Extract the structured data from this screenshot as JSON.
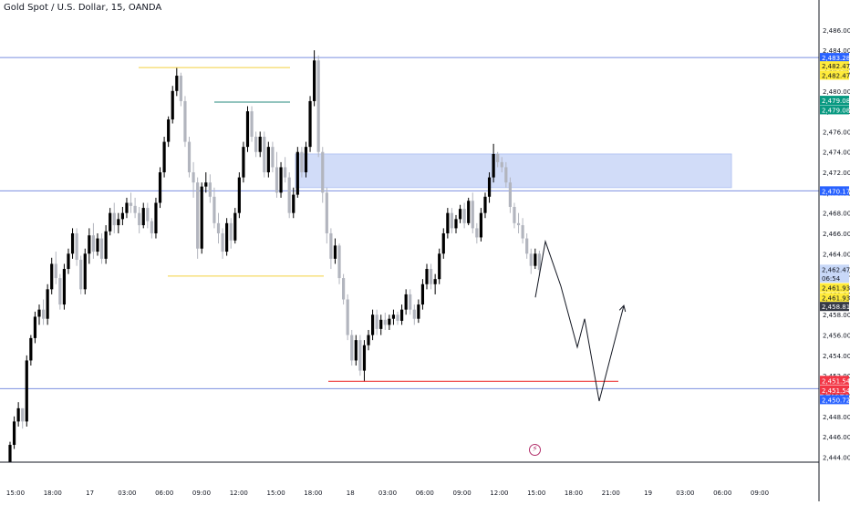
{
  "header": {
    "title": "Gold Spot / U.S. Dollar, 15, OANDA"
  },
  "icons": {
    "alert": "flash-icon"
  },
  "colors": {
    "up": "#000000",
    "down": "#b2b5be",
    "hline": "#7b8fe0",
    "zone": "#c9d6f7",
    "yellow": "#f4d03f",
    "teal": "#26897d",
    "red": "#ee3b3b",
    "badge_blue": "#2962ff",
    "badge_yellow": "#ffeb3b",
    "badge_green": "#089981",
    "badge_dark": "#363a45",
    "badge_red": "#f23645",
    "badge_light": "#c8d8f8"
  },
  "chart_data": {
    "type": "candlestick",
    "symbol": "Gold Spot / U.S. Dollar",
    "interval": "15",
    "source": "OANDA",
    "ylim": [
      2443.5,
      2487.6
    ],
    "y_ticks": [
      "2,486.000",
      "2,484.000",
      "2,482.000",
      "2,480.000",
      "2,478.000",
      "2,476.000",
      "2,474.000",
      "2,472.000",
      "2,470.000",
      "2,468.000",
      "2,466.000",
      "2,464.000",
      "2,462.000",
      "2,460.000",
      "2,458.000",
      "2,456.000",
      "2,454.000",
      "2,452.000",
      "2,450.000",
      "2,448.000",
      "2,446.000",
      "2,444.000"
    ],
    "x_ticks": [
      "15:00",
      "18:00",
      "17",
      "03:00",
      "06:00",
      "09:00",
      "12:00",
      "15:00",
      "18:00",
      "18",
      "03:00",
      "06:00",
      "09:00",
      "12:00",
      "15:00",
      "18:00",
      "21:00",
      "19",
      "03:00",
      "06:00",
      "09:00"
    ],
    "price_badges": [
      {
        "label": "2,483.289",
        "y": 2483.289,
        "style": "blue"
      },
      {
        "label": "2,482.478",
        "y": 2482.478,
        "style": "yellow"
      },
      {
        "label": "2,482.478",
        "y": 2481.55,
        "style": "yellow"
      },
      {
        "label": "2,479.080",
        "y": 2479.08,
        "style": "green"
      },
      {
        "label": "2,479.080",
        "y": 2478.15,
        "style": "green"
      },
      {
        "label": "2,470.178",
        "y": 2470.178,
        "style": "blue"
      },
      {
        "label": "2,462.475",
        "y": 2462.475,
        "style": "light"
      },
      {
        "label": "06:54",
        "y": 2461.6,
        "style": "light"
      },
      {
        "label": "2,461.937",
        "y": 2460.65,
        "style": "yellow"
      },
      {
        "label": "2,461.937",
        "y": 2459.7,
        "style": "yellow"
      },
      {
        "label": "2,458.810",
        "y": 2458.81,
        "style": "dark"
      },
      {
        "label": "2,451.542",
        "y": 2451.542,
        "style": "red"
      },
      {
        "label": "2,451.542",
        "y": 2450.6,
        "style": "red"
      },
      {
        "label": "2,450.723",
        "y": 2449.65,
        "style": "blue"
      }
    ],
    "horizontal_lines": [
      2483.289,
      2470.178,
      2450.723
    ],
    "zone": {
      "y_top": 2473.8,
      "y_bottom": 2470.5,
      "x_start": 324,
      "x_end": 802
    },
    "segments": [
      {
        "color": "yellow",
        "y": 2482.3,
        "x1": 152,
        "x2": 318
      },
      {
        "color": "teal",
        "y": 2478.9,
        "x1": 235,
        "x2": 318
      },
      {
        "color": "yellow",
        "y": 2461.8,
        "x1": 184,
        "x2": 355
      },
      {
        "color": "red",
        "y": 2451.45,
        "x1": 360,
        "x2": 678
      }
    ],
    "projection_path": [
      [
        587,
        2459.7
      ],
      [
        598,
        2465.2
      ],
      [
        615,
        2460.8
      ],
      [
        633,
        2454.8
      ],
      [
        641,
        2457.6
      ],
      [
        657,
        2449.5
      ],
      [
        684,
        2458.9
      ]
    ],
    "ohlc": [
      [
        2443.5,
        2445.5,
        2443.5,
        2445.2
      ],
      [
        2445.2,
        2448.0,
        2444.8,
        2447.5
      ],
      [
        2447.5,
        2449.4,
        2447.0,
        2448.8
      ],
      [
        2448.8,
        2448.8,
        2446.8,
        2447.5
      ],
      [
        2447.5,
        2454.0,
        2447.0,
        2453.5
      ],
      [
        2453.5,
        2456.0,
        2453.0,
        2455.7
      ],
      [
        2455.7,
        2458.3,
        2455.2,
        2457.8
      ],
      [
        2457.8,
        2459.0,
        2457.0,
        2458.5
      ],
      [
        2458.5,
        2459.5,
        2457.0,
        2457.6
      ],
      [
        2457.6,
        2461.0,
        2457.0,
        2460.5
      ],
      [
        2460.5,
        2463.6,
        2460.0,
        2463.0
      ],
      [
        2463.0,
        2464.2,
        2461.0,
        2461.6
      ],
      [
        2461.6,
        2462.0,
        2458.5,
        2459.0
      ],
      [
        2459.0,
        2463.0,
        2458.5,
        2462.5
      ],
      [
        2462.5,
        2464.5,
        2462.0,
        2464.0
      ],
      [
        2464.0,
        2466.5,
        2463.5,
        2466.0
      ],
      [
        2466.0,
        2466.5,
        2462.8,
        2463.4
      ],
      [
        2463.4,
        2463.8,
        2460.0,
        2460.5
      ],
      [
        2460.5,
        2464.5,
        2460.0,
        2464.0
      ],
      [
        2464.0,
        2466.5,
        2463.0,
        2465.8
      ],
      [
        2465.8,
        2467.0,
        2463.5,
        2464.2
      ],
      [
        2464.2,
        2466.0,
        2463.8,
        2465.5
      ],
      [
        2465.5,
        2466.0,
        2463.0,
        2463.5
      ],
      [
        2463.5,
        2466.8,
        2463.0,
        2466.2
      ],
      [
        2466.2,
        2468.5,
        2465.8,
        2468.0
      ],
      [
        2468.0,
        2469.0,
        2466.0,
        2466.8
      ],
      [
        2466.8,
        2468.0,
        2466.0,
        2467.4
      ],
      [
        2467.4,
        2468.6,
        2466.8,
        2468.0
      ],
      [
        2468.0,
        2469.5,
        2467.5,
        2469.0
      ],
      [
        2469.0,
        2470.0,
        2468.0,
        2468.7
      ],
      [
        2468.7,
        2469.5,
        2467.5,
        2468.0
      ],
      [
        2468.0,
        2468.6,
        2466.0,
        2466.8
      ],
      [
        2466.8,
        2469.0,
        2466.5,
        2468.5
      ],
      [
        2468.5,
        2469.0,
        2466.5,
        2467.2
      ],
      [
        2467.2,
        2467.5,
        2465.5,
        2466.0
      ],
      [
        2466.0,
        2469.5,
        2465.5,
        2469.0
      ],
      [
        2469.0,
        2472.5,
        2468.5,
        2472.0
      ],
      [
        2472.0,
        2475.5,
        2471.5,
        2475.0
      ],
      [
        2475.0,
        2477.5,
        2474.5,
        2477.2
      ],
      [
        2477.2,
        2480.5,
        2476.8,
        2480.0
      ],
      [
        2480.0,
        2482.3,
        2479.5,
        2481.5
      ],
      [
        2481.5,
        2481.8,
        2478.5,
        2479.0
      ],
      [
        2479.0,
        2479.5,
        2474.5,
        2475.0
      ],
      [
        2475.0,
        2475.5,
        2471.5,
        2472.0
      ],
      [
        2472.0,
        2473.0,
        2469.5,
        2471.0
      ],
      [
        2471.0,
        2471.5,
        2463.5,
        2464.5
      ],
      [
        2464.5,
        2471.0,
        2464.0,
        2470.6
      ],
      [
        2470.6,
        2472.0,
        2470.0,
        2471.0
      ],
      [
        2471.0,
        2471.8,
        2469.0,
        2469.6
      ],
      [
        2469.6,
        2470.5,
        2466.5,
        2467.0
      ],
      [
        2467.0,
        2468.0,
        2465.0,
        2466.0
      ],
      [
        2466.0,
        2466.5,
        2463.5,
        2464.2
      ],
      [
        2464.2,
        2467.5,
        2463.8,
        2467.0
      ],
      [
        2467.0,
        2467.5,
        2464.5,
        2465.3
      ],
      [
        2465.3,
        2468.5,
        2465.0,
        2468.0
      ],
      [
        2468.0,
        2472.0,
        2467.5,
        2471.5
      ],
      [
        2471.5,
        2475.0,
        2471.0,
        2474.5
      ],
      [
        2474.5,
        2478.5,
        2474.0,
        2478.0
      ],
      [
        2478.0,
        2478.5,
        2475.0,
        2475.5
      ],
      [
        2475.5,
        2476.0,
        2473.5,
        2474.0
      ],
      [
        2474.0,
        2476.0,
        2473.5,
        2475.5
      ],
      [
        2475.5,
        2476.0,
        2471.5,
        2472.0
      ],
      [
        2472.0,
        2475.0,
        2471.5,
        2474.5
      ],
      [
        2474.5,
        2475.0,
        2472.0,
        2472.5
      ],
      [
        2472.5,
        2474.0,
        2469.5,
        2470.0
      ],
      [
        2470.0,
        2473.0,
        2469.5,
        2472.5
      ],
      [
        2472.5,
        2473.5,
        2471.0,
        2471.5
      ],
      [
        2471.5,
        2472.0,
        2467.5,
        2468.0
      ],
      [
        2468.0,
        2470.5,
        2467.5,
        2469.8
      ],
      [
        2469.8,
        2474.5,
        2469.5,
        2474.0
      ],
      [
        2474.0,
        2474.5,
        2471.5,
        2472.0
      ],
      [
        2472.0,
        2475.0,
        2471.5,
        2474.5
      ],
      [
        2474.5,
        2479.5,
        2474.0,
        2479.0
      ],
      [
        2479.0,
        2484.0,
        2478.5,
        2483.0
      ],
      [
        2483.0,
        2483.5,
        2473.5,
        2474.0
      ],
      [
        2474.0,
        2474.5,
        2469.0,
        2470.0
      ],
      [
        2470.0,
        2470.5,
        2465.0,
        2466.0
      ],
      [
        2466.0,
        2466.5,
        2462.5,
        2463.5
      ],
      [
        2463.5,
        2465.5,
        2463.0,
        2464.8
      ],
      [
        2464.8,
        2465.0,
        2461.0,
        2461.6
      ],
      [
        2461.6,
        2462.0,
        2459.0,
        2459.5
      ],
      [
        2459.5,
        2460.0,
        2455.5,
        2456.0
      ],
      [
        2456.0,
        2456.5,
        2453.0,
        2453.5
      ],
      [
        2453.5,
        2456.0,
        2453.0,
        2455.5
      ],
      [
        2455.5,
        2456.0,
        2452.0,
        2452.5
      ],
      [
        2452.5,
        2455.5,
        2451.4,
        2455.0
      ],
      [
        2455.0,
        2456.5,
        2454.5,
        2456.0
      ],
      [
        2456.0,
        2458.5,
        2455.5,
        2458.0
      ],
      [
        2458.0,
        2458.5,
        2456.0,
        2456.6
      ],
      [
        2456.6,
        2458.0,
        2456.0,
        2457.5
      ],
      [
        2457.5,
        2458.2,
        2456.5,
        2457.0
      ],
      [
        2457.0,
        2458.0,
        2456.5,
        2457.6
      ],
      [
        2457.6,
        2458.5,
        2457.0,
        2458.0
      ],
      [
        2458.0,
        2458.3,
        2457.0,
        2457.4
      ],
      [
        2457.4,
        2459.0,
        2457.0,
        2458.5
      ],
      [
        2458.5,
        2460.5,
        2458.0,
        2460.0
      ],
      [
        2460.0,
        2460.5,
        2458.0,
        2458.5
      ],
      [
        2458.5,
        2459.0,
        2457.0,
        2457.6
      ],
      [
        2457.6,
        2459.5,
        2457.2,
        2459.0
      ],
      [
        2459.0,
        2461.5,
        2458.5,
        2461.0
      ],
      [
        2461.0,
        2463.0,
        2460.5,
        2462.5
      ],
      [
        2462.5,
        2463.0,
        2460.5,
        2461.0
      ],
      [
        2461.0,
        2462.0,
        2460.0,
        2461.5
      ],
      [
        2461.5,
        2464.5,
        2461.0,
        2464.0
      ],
      [
        2464.0,
        2466.5,
        2463.5,
        2466.0
      ],
      [
        2466.0,
        2468.5,
        2465.5,
        2468.0
      ],
      [
        2468.0,
        2468.5,
        2466.0,
        2466.5
      ],
      [
        2466.5,
        2467.8,
        2466.0,
        2467.4
      ],
      [
        2467.4,
        2468.8,
        2467.0,
        2468.4
      ],
      [
        2468.4,
        2469.0,
        2466.5,
        2467.0
      ],
      [
        2467.0,
        2469.5,
        2466.8,
        2469.2
      ],
      [
        2469.2,
        2470.0,
        2466.0,
        2466.5
      ],
      [
        2466.5,
        2467.0,
        2465.0,
        2465.6
      ],
      [
        2465.6,
        2468.5,
        2465.2,
        2468.0
      ],
      [
        2468.0,
        2470.0,
        2467.5,
        2469.6
      ],
      [
        2469.6,
        2472.0,
        2469.0,
        2471.5
      ],
      [
        2471.5,
        2474.8,
        2471.0,
        2473.8
      ],
      [
        2473.8,
        2474.0,
        2472.5,
        2473.0
      ],
      [
        2473.0,
        2473.5,
        2472.0,
        2472.5
      ],
      [
        2472.5,
        2473.0,
        2470.5,
        2471.0
      ],
      [
        2471.0,
        2471.5,
        2468.0,
        2468.6
      ],
      [
        2468.6,
        2469.0,
        2466.5,
        2467.0
      ],
      [
        2467.0,
        2468.0,
        2466.0,
        2466.8
      ],
      [
        2466.8,
        2467.5,
        2465.0,
        2465.5
      ],
      [
        2465.5,
        2466.0,
        2463.5,
        2464.0
      ],
      [
        2464.0,
        2464.5,
        2462.0,
        2462.8
      ],
      [
        2462.8,
        2464.5,
        2462.5,
        2464.0
      ],
      [
        2464.0,
        2464.3,
        2461.8,
        2462.4
      ]
    ]
  }
}
